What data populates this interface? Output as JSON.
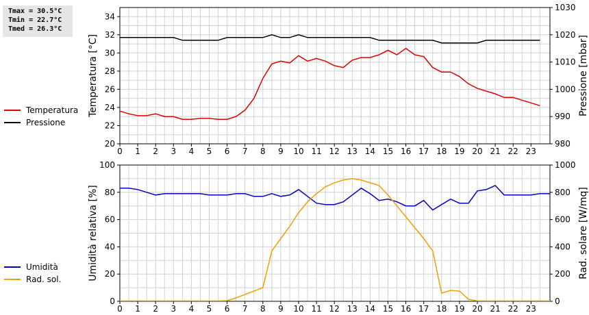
{
  "stats": {
    "tmax": "Tmax = 30.5°C",
    "tmin": "Tmin = 22.7°C",
    "tmed": "Tmed = 26.3°C"
  },
  "chart_data": [
    {
      "type": "line",
      "grid": true,
      "legend_placement": "left",
      "xlim": [
        0,
        24
      ],
      "xticks": [
        0,
        1,
        2,
        3,
        4,
        5,
        6,
        7,
        8,
        9,
        10,
        11,
        12,
        13,
        14,
        15,
        16,
        17,
        18,
        19,
        20,
        21,
        22,
        23
      ],
      "ylabel_left": "Temperatura [°C]",
      "ylim_left": [
        20,
        35
      ],
      "yticks_left": [
        20,
        22,
        24,
        26,
        28,
        30,
        32,
        34
      ],
      "ylabel_right": "Pressione [mbar]",
      "ylim_right": [
        980,
        1030
      ],
      "yticks_right": [
        980,
        990,
        1000,
        1010,
        1020,
        1030
      ],
      "series": [
        {
          "name": "Temperatura",
          "axis": "left",
          "color": "#e00000",
          "points": [
            [
              0,
              23.6
            ],
            [
              0.5,
              23.3
            ],
            [
              1,
              23.1
            ],
            [
              1.5,
              23.1
            ],
            [
              2,
              23.3
            ],
            [
              2.5,
              23.0
            ],
            [
              3,
              23.0
            ],
            [
              3.5,
              22.7
            ],
            [
              4,
              22.7
            ],
            [
              4.5,
              22.8
            ],
            [
              5,
              22.8
            ],
            [
              5.5,
              22.7
            ],
            [
              6,
              22.7
            ],
            [
              6.5,
              23.0
            ],
            [
              7,
              23.7
            ],
            [
              7.5,
              25.0
            ],
            [
              8,
              27.2
            ],
            [
              8.5,
              28.8
            ],
            [
              9,
              29.1
            ],
            [
              9.5,
              28.9
            ],
            [
              10,
              29.7
            ],
            [
              10.5,
              29.1
            ],
            [
              11,
              29.4
            ],
            [
              11.5,
              29.1
            ],
            [
              12,
              28.6
            ],
            [
              12.5,
              28.4
            ],
            [
              13,
              29.2
            ],
            [
              13.5,
              29.5
            ],
            [
              14,
              29.5
            ],
            [
              14.5,
              29.8
            ],
            [
              15,
              30.3
            ],
            [
              15.5,
              29.8
            ],
            [
              16,
              30.5
            ],
            [
              16.5,
              29.8
            ],
            [
              17,
              29.6
            ],
            [
              17.5,
              28.4
            ],
            [
              18,
              27.9
            ],
            [
              18.5,
              27.9
            ],
            [
              19,
              27.4
            ],
            [
              19.5,
              26.6
            ],
            [
              20,
              26.1
            ],
            [
              20.5,
              25.8
            ],
            [
              21,
              25.5
            ],
            [
              21.5,
              25.1
            ],
            [
              22,
              25.1
            ],
            [
              22.5,
              24.8
            ],
            [
              23,
              24.5
            ],
            [
              23.5,
              24.2
            ]
          ]
        },
        {
          "name": "Pressione",
          "axis": "right",
          "color": "#000000",
          "points": [
            [
              0,
              1019
            ],
            [
              1,
              1019
            ],
            [
              2,
              1019
            ],
            [
              3,
              1019
            ],
            [
              3.5,
              1018
            ],
            [
              4,
              1018
            ],
            [
              5,
              1018
            ],
            [
              5.5,
              1018
            ],
            [
              6,
              1019
            ],
            [
              7,
              1019
            ],
            [
              8,
              1019
            ],
            [
              8.5,
              1020
            ],
            [
              9,
              1019
            ],
            [
              9.5,
              1019
            ],
            [
              10,
              1020
            ],
            [
              10.5,
              1019
            ],
            [
              11,
              1019
            ],
            [
              12,
              1019
            ],
            [
              13,
              1019
            ],
            [
              14,
              1019
            ],
            [
              14.5,
              1018
            ],
            [
              15,
              1018
            ],
            [
              16,
              1018
            ],
            [
              17,
              1018
            ],
            [
              17.5,
              1018
            ],
            [
              18,
              1017
            ],
            [
              19,
              1017
            ],
            [
              20,
              1017
            ],
            [
              20.5,
              1018
            ],
            [
              21,
              1018
            ],
            [
              22,
              1018
            ],
            [
              23,
              1018
            ],
            [
              23.5,
              1018
            ]
          ]
        }
      ]
    },
    {
      "type": "line",
      "grid": true,
      "legend_placement": "left",
      "xlim": [
        0,
        24
      ],
      "xticks": [
        0,
        1,
        2,
        3,
        4,
        5,
        6,
        7,
        8,
        9,
        10,
        11,
        12,
        13,
        14,
        15,
        16,
        17,
        18,
        19,
        20,
        21,
        22,
        23
      ],
      "ylabel_left": "Umidità relativa [%]",
      "ylim_left": [
        0,
        100
      ],
      "yticks_left": [
        0,
        20,
        40,
        60,
        80,
        100
      ],
      "ylabel_right": "Rad. solare [W/mq]",
      "ylim_right": [
        0,
        1000
      ],
      "yticks_right": [
        0,
        200,
        400,
        600,
        800,
        1000
      ],
      "series": [
        {
          "name": "Umidità",
          "axis": "left",
          "color": "#0000c0",
          "points": [
            [
              0,
              83
            ],
            [
              0.5,
              83
            ],
            [
              1,
              82
            ],
            [
              1.5,
              80
            ],
            [
              2,
              78
            ],
            [
              2.5,
              79
            ],
            [
              3,
              79
            ],
            [
              4,
              79
            ],
            [
              4.5,
              79
            ],
            [
              5,
              78
            ],
            [
              6,
              78
            ],
            [
              6.5,
              79
            ],
            [
              7,
              79
            ],
            [
              7.5,
              77
            ],
            [
              8,
              77
            ],
            [
              8.5,
              79
            ],
            [
              9,
              77
            ],
            [
              9.5,
              78
            ],
            [
              10,
              82
            ],
            [
              10.5,
              77
            ],
            [
              11,
              72
            ],
            [
              11.5,
              71
            ],
            [
              12,
              71
            ],
            [
              12.5,
              73
            ],
            [
              13,
              78
            ],
            [
              13.5,
              83
            ],
            [
              14,
              79
            ],
            [
              14.5,
              74
            ],
            [
              15,
              75
            ],
            [
              15.5,
              73
            ],
            [
              16,
              70
            ],
            [
              16.5,
              70
            ],
            [
              17,
              74
            ],
            [
              17.5,
              67
            ],
            [
              18,
              71
            ],
            [
              18.5,
              75
            ],
            [
              19,
              72
            ],
            [
              19.5,
              72
            ],
            [
              20,
              81
            ],
            [
              20.5,
              82
            ],
            [
              21,
              85
            ],
            [
              21.5,
              78
            ],
            [
              22,
              78
            ],
            [
              23,
              78
            ],
            [
              23.5,
              79
            ],
            [
              24,
              79
            ],
            [
              24.5,
              77
            ]
          ]
        },
        {
          "name": "Rad. sol.",
          "axis": "right",
          "color": "#f0a000",
          "points": [
            [
              0,
              3
            ],
            [
              1,
              3
            ],
            [
              2,
              3
            ],
            [
              3,
              3
            ],
            [
              4,
              3
            ],
            [
              5,
              3
            ],
            [
              5.5,
              3
            ],
            [
              6,
              5
            ],
            [
              6.5,
              25
            ],
            [
              7,
              50
            ],
            [
              7.5,
              75
            ],
            [
              8,
              100
            ],
            [
              8.5,
              370
            ],
            [
              9,
              460
            ],
            [
              9.5,
              550
            ],
            [
              10,
              650
            ],
            [
              10.5,
              730
            ],
            [
              11,
              790
            ],
            [
              11.5,
              840
            ],
            [
              12,
              870
            ],
            [
              12.5,
              890
            ],
            [
              13,
              900
            ],
            [
              13.5,
              890
            ],
            [
              14,
              870
            ],
            [
              14.5,
              850
            ],
            [
              15,
              780
            ],
            [
              15.5,
              700
            ],
            [
              16,
              620
            ],
            [
              16.5,
              540
            ],
            [
              17,
              460
            ],
            [
              17.5,
              370
            ],
            [
              18,
              60
            ],
            [
              18.5,
              80
            ],
            [
              19,
              75
            ],
            [
              19.5,
              15
            ],
            [
              20,
              3
            ],
            [
              21,
              3
            ],
            [
              22,
              3
            ],
            [
              23,
              3
            ],
            [
              24,
              3
            ],
            [
              24.5,
              3
            ]
          ]
        }
      ]
    }
  ]
}
